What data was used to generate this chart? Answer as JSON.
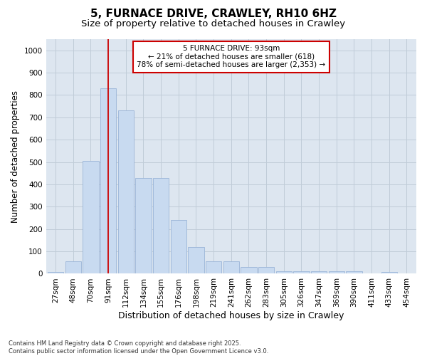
{
  "title": "5, FURNACE DRIVE, CRAWLEY, RH10 6HZ",
  "subtitle": "Size of property relative to detached houses in Crawley",
  "xlabel": "Distribution of detached houses by size in Crawley",
  "ylabel": "Number of detached properties",
  "categories": [
    "27sqm",
    "48sqm",
    "70sqm",
    "91sqm",
    "112sqm",
    "134sqm",
    "155sqm",
    "176sqm",
    "198sqm",
    "219sqm",
    "241sqm",
    "262sqm",
    "283sqm",
    "305sqm",
    "326sqm",
    "347sqm",
    "369sqm",
    "390sqm",
    "411sqm",
    "433sqm",
    "454sqm"
  ],
  "values": [
    8,
    55,
    505,
    830,
    730,
    430,
    430,
    240,
    118,
    57,
    55,
    30,
    30,
    12,
    12,
    12,
    10,
    10,
    0,
    7,
    0
  ],
  "bar_color": "#c8daf0",
  "bar_edge_color": "#9ab5d8",
  "grid_color": "#c0ccd8",
  "fig_bg_color": "#ffffff",
  "plot_bg_color": "#dde6f0",
  "vline_x": 3,
  "vline_color": "#cc0000",
  "annotation_text": "5 FURNACE DRIVE: 93sqm\n← 21% of detached houses are smaller (618)\n78% of semi-detached houses are larger (2,353) →",
  "annotation_box_color": "#cc0000",
  "ylim": [
    0,
    1050
  ],
  "yticks": [
    0,
    100,
    200,
    300,
    400,
    500,
    600,
    700,
    800,
    900,
    1000
  ],
  "footer": "Contains HM Land Registry data © Crown copyright and database right 2025.\nContains public sector information licensed under the Open Government Licence v3.0.",
  "title_fontsize": 11,
  "subtitle_fontsize": 9.5,
  "tick_fontsize": 7.5,
  "ylabel_fontsize": 8.5,
  "xlabel_fontsize": 9,
  "annotation_fontsize": 7.5,
  "footer_fontsize": 6
}
